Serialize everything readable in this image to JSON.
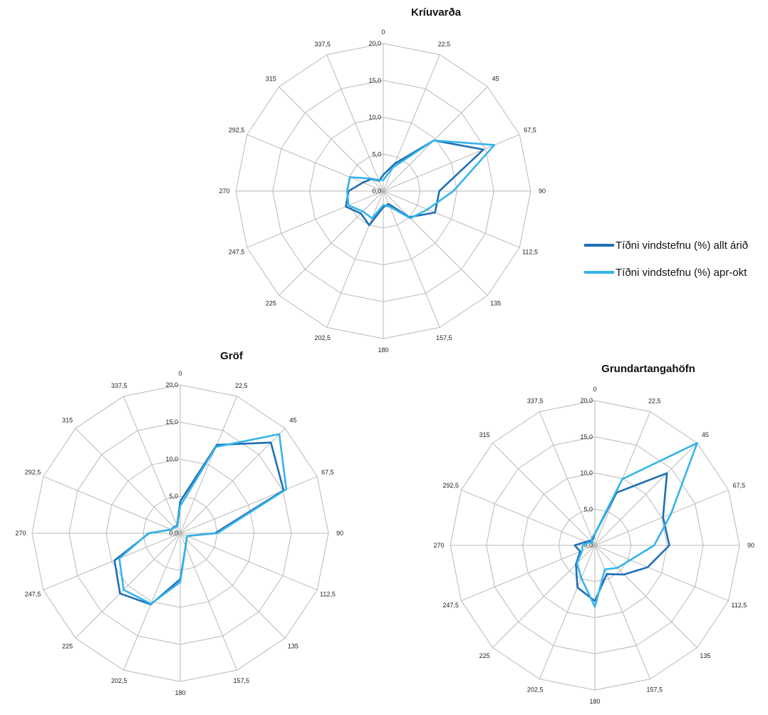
{
  "legend": {
    "items": [
      {
        "label": "Tíðni vindstefnu (%) allt árið",
        "color": "#1f6fb5"
      },
      {
        "label": "Tíðni vindstefnu (%) apr-okt",
        "color": "#35b4ea"
      }
    ]
  },
  "chart_data": [
    {
      "type": "radar",
      "title": "Kríuvarða",
      "directions": [
        "0",
        "22,5",
        "45",
        "67,5",
        "90",
        "112,5",
        "135",
        "157,5",
        "180",
        "202,5",
        "225",
        "247,5",
        "270",
        "292,5",
        "315",
        "337,5"
      ],
      "tick_labels": [
        "0,0",
        "5,0",
        "10,0",
        "15,0",
        "20,0"
      ],
      "rlim": [
        0,
        20
      ],
      "series": [
        {
          "name": "Tíðni vindstefnu (%) allt árið",
          "color": "#1f6fb5",
          "values": [
            2.2,
            4.0,
            9.7,
            14.7,
            7.6,
            7.6,
            5.0,
            1.9,
            2.2,
            5.0,
            4.3,
            5.5,
            4.7,
            3.0,
            2.3,
            1.5
          ]
        },
        {
          "name": "Tíðni vindstefnu (%) apr-okt",
          "color": "#35b4ea",
          "values": [
            1.5,
            3.5,
            9.7,
            16.3,
            9.5,
            6.5,
            5.2,
            2.3,
            1.9,
            4.0,
            3.9,
            5.1,
            4.9,
            4.9,
            2.4,
            1.6
          ]
        }
      ]
    },
    {
      "type": "radar",
      "title": "Gröf",
      "directions": [
        "0",
        "22,5",
        "45",
        "67,5",
        "90",
        "112,5",
        "135",
        "157,5",
        "180",
        "202,5",
        "225",
        "247,5",
        "270",
        "292,5",
        "315",
        "337,5"
      ],
      "tick_labels": [
        "0,0",
        "5,0",
        "10,0",
        "15,0",
        "20,0"
      ],
      "rlim": [
        0,
        20
      ],
      "series": [
        {
          "name": "Tíðni vindstefnu (%) allt árið",
          "color": "#1f6fb5",
          "values": [
            4.3,
            12.9,
            17.3,
            15.1,
            4.7,
            1.0,
            1.2,
            1.9,
            6.2,
            10.4,
            11.5,
            9.6,
            4.2,
            1.3,
            1.2,
            1.1
          ]
        },
        {
          "name": "Tíðni vindstefnu (%) apr-okt",
          "color": "#35b4ea",
          "values": [
            3.7,
            12.6,
            18.9,
            15.5,
            5.0,
            1.0,
            1.2,
            1.9,
            6.6,
            10.3,
            10.8,
            8.9,
            4.3,
            1.3,
            1.1,
            1.0
          ]
        }
      ]
    },
    {
      "type": "radar",
      "title": "Grundartangahöfn",
      "directions": [
        "0",
        "22,5",
        "45",
        "67,5",
        "90",
        "112,5",
        "135",
        "157,5",
        "180",
        "202,5",
        "225",
        "247,5",
        "270",
        "292,5",
        "315",
        "337,5"
      ],
      "tick_labels": [
        "0,0",
        "5,0",
        "10,0",
        "15,0",
        "20,0"
      ],
      "rlim": [
        0,
        20
      ],
      "series": [
        {
          "name": "Tíðni vindstefnu (%) allt árið",
          "color": "#1f6fb5",
          "values": [
            1.6,
            7.9,
            14.1,
            10.2,
            10.3,
            7.9,
            5.7,
            4.3,
            7.7,
            6.3,
            3.7,
            2.2,
            2.8,
            1.3,
            0.9,
            0.8
          ]
        },
        {
          "name": "Tíðni vindstefnu (%) apr-okt",
          "color": "#35b4ea",
          "values": [
            1.6,
            9.9,
            20.0,
            11.4,
            8.2,
            5.3,
            4.4,
            3.6,
            8.5,
            4.9,
            3.5,
            1.9,
            1.7,
            1.0,
            0.5,
            1.1
          ]
        }
      ]
    }
  ]
}
